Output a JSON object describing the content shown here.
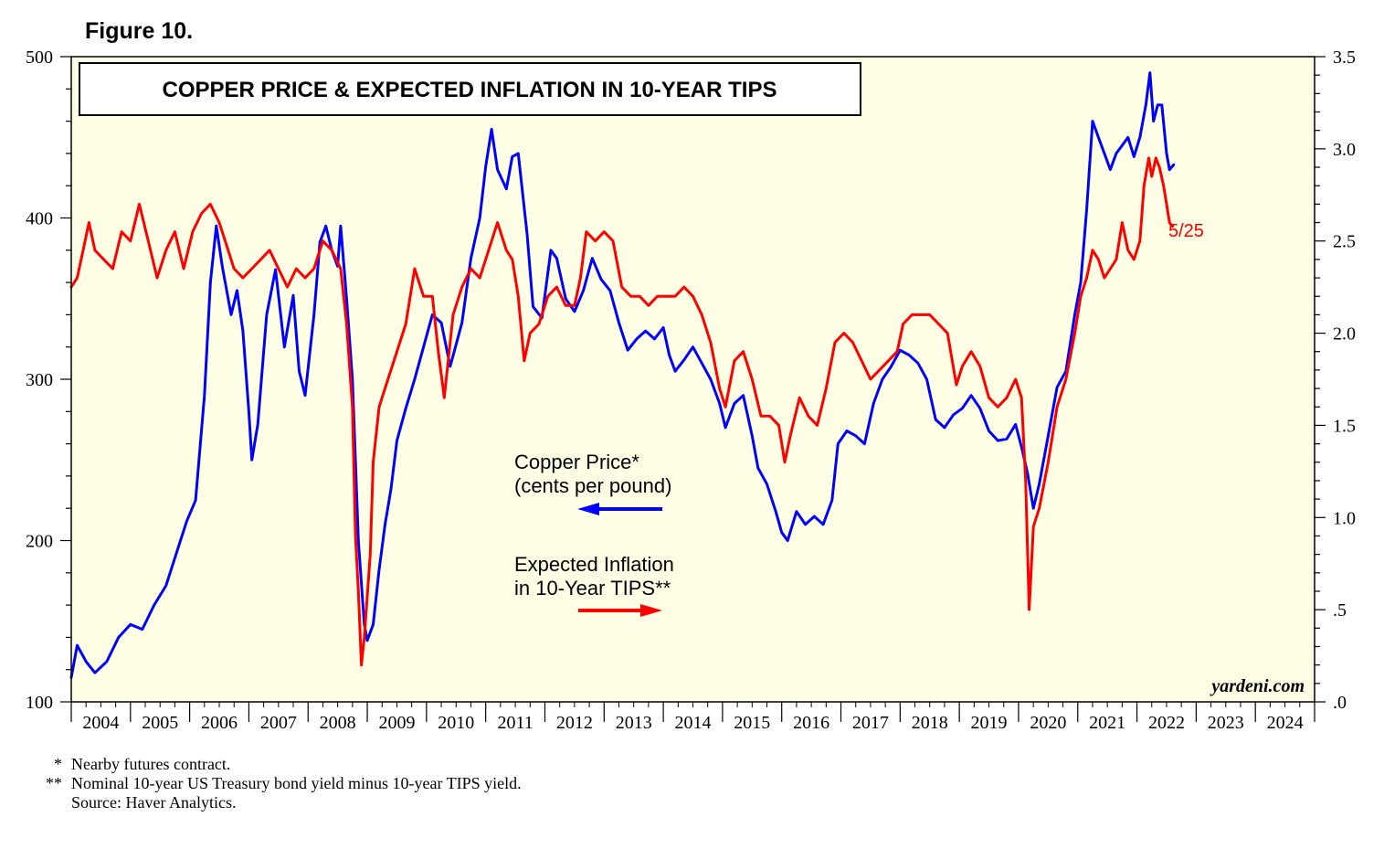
{
  "figure_label": "Figure 10.",
  "colors": {
    "plot_bg": "#FFFFE5",
    "copper": "#0000FF",
    "tips": "#FF0000",
    "axis": "#000000"
  },
  "chart_data": {
    "type": "line",
    "title": "COPPER PRICE & EXPECTED INFLATION IN 10-YEAR TIPS",
    "x_range": [
      2004.0,
      2025.0
    ],
    "x_tick_labels": [
      "2004",
      "2005",
      "2006",
      "2007",
      "2008",
      "2009",
      "2010",
      "2011",
      "2012",
      "2013",
      "2014",
      "2015",
      "2016",
      "2017",
      "2018",
      "2019",
      "2020",
      "2021",
      "2022",
      "2023",
      "2024"
    ],
    "y_left": {
      "range": [
        100,
        500
      ],
      "tick_labels": [
        "100",
        "200",
        "300",
        "400",
        "500"
      ]
    },
    "y_right": {
      "range": [
        0.0,
        3.5
      ],
      "tick_labels": [
        ".0",
        ".5",
        "1.0",
        "1.5",
        "2.0",
        "2.5",
        "3.0",
        "3.5"
      ]
    },
    "series": [
      {
        "name": "Copper Price",
        "legend": [
          "Copper Price*",
          "(cents per pound)"
        ],
        "axis": "left",
        "points": [
          [
            2004.0,
            115
          ],
          [
            2004.1,
            135
          ],
          [
            2004.25,
            125
          ],
          [
            2004.4,
            118
          ],
          [
            2004.6,
            125
          ],
          [
            2004.8,
            140
          ],
          [
            2005.0,
            148
          ],
          [
            2005.2,
            145
          ],
          [
            2005.4,
            160
          ],
          [
            2005.6,
            172
          ],
          [
            2005.8,
            195
          ],
          [
            2005.95,
            212
          ],
          [
            2006.1,
            225
          ],
          [
            2006.25,
            290
          ],
          [
            2006.35,
            360
          ],
          [
            2006.45,
            395
          ],
          [
            2006.55,
            370
          ],
          [
            2006.7,
            340
          ],
          [
            2006.8,
            355
          ],
          [
            2006.9,
            330
          ],
          [
            2007.0,
            280
          ],
          [
            2007.05,
            250
          ],
          [
            2007.15,
            272
          ],
          [
            2007.3,
            340
          ],
          [
            2007.45,
            368
          ],
          [
            2007.6,
            320
          ],
          [
            2007.75,
            352
          ],
          [
            2007.85,
            305
          ],
          [
            2007.95,
            290
          ],
          [
            2008.1,
            340
          ],
          [
            2008.2,
            385
          ],
          [
            2008.3,
            395
          ],
          [
            2008.4,
            380
          ],
          [
            2008.5,
            370
          ],
          [
            2008.55,
            395
          ],
          [
            2008.65,
            350
          ],
          [
            2008.75,
            300
          ],
          [
            2008.85,
            200
          ],
          [
            2008.95,
            148
          ],
          [
            2009.0,
            138
          ],
          [
            2009.1,
            148
          ],
          [
            2009.2,
            182
          ],
          [
            2009.3,
            210
          ],
          [
            2009.4,
            232
          ],
          [
            2009.5,
            262
          ],
          [
            2009.65,
            282
          ],
          [
            2009.8,
            300
          ],
          [
            2009.95,
            320
          ],
          [
            2010.1,
            340
          ],
          [
            2010.25,
            335
          ],
          [
            2010.4,
            308
          ],
          [
            2010.6,
            335
          ],
          [
            2010.75,
            375
          ],
          [
            2010.9,
            400
          ],
          [
            2011.0,
            432
          ],
          [
            2011.1,
            455
          ],
          [
            2011.2,
            430
          ],
          [
            2011.35,
            418
          ],
          [
            2011.45,
            438
          ],
          [
            2011.55,
            440
          ],
          [
            2011.7,
            390
          ],
          [
            2011.8,
            345
          ],
          [
            2011.95,
            338
          ],
          [
            2012.1,
            380
          ],
          [
            2012.2,
            375
          ],
          [
            2012.35,
            350
          ],
          [
            2012.5,
            342
          ],
          [
            2012.65,
            355
          ],
          [
            2012.8,
            375
          ],
          [
            2012.95,
            362
          ],
          [
            2013.1,
            355
          ],
          [
            2013.25,
            335
          ],
          [
            2013.4,
            318
          ],
          [
            2013.55,
            325
          ],
          [
            2013.7,
            330
          ],
          [
            2013.85,
            325
          ],
          [
            2014.0,
            332
          ],
          [
            2014.1,
            315
          ],
          [
            2014.2,
            305
          ],
          [
            2014.35,
            312
          ],
          [
            2014.5,
            320
          ],
          [
            2014.65,
            310
          ],
          [
            2014.8,
            300
          ],
          [
            2014.95,
            285
          ],
          [
            2015.05,
            270
          ],
          [
            2015.2,
            285
          ],
          [
            2015.35,
            290
          ],
          [
            2015.5,
            265
          ],
          [
            2015.6,
            245
          ],
          [
            2015.75,
            235
          ],
          [
            2015.9,
            218
          ],
          [
            2016.0,
            205
          ],
          [
            2016.1,
            200
          ],
          [
            2016.25,
            218
          ],
          [
            2016.4,
            210
          ],
          [
            2016.55,
            215
          ],
          [
            2016.7,
            210
          ],
          [
            2016.85,
            225
          ],
          [
            2016.95,
            260
          ],
          [
            2017.1,
            268
          ],
          [
            2017.25,
            265
          ],
          [
            2017.4,
            260
          ],
          [
            2017.55,
            285
          ],
          [
            2017.7,
            300
          ],
          [
            2017.85,
            308
          ],
          [
            2018.0,
            318
          ],
          [
            2018.15,
            315
          ],
          [
            2018.3,
            310
          ],
          [
            2018.45,
            300
          ],
          [
            2018.6,
            275
          ],
          [
            2018.75,
            270
          ],
          [
            2018.9,
            278
          ],
          [
            2019.05,
            282
          ],
          [
            2019.2,
            290
          ],
          [
            2019.35,
            282
          ],
          [
            2019.5,
            268
          ],
          [
            2019.65,
            262
          ],
          [
            2019.8,
            263
          ],
          [
            2019.95,
            272
          ],
          [
            2020.05,
            258
          ],
          [
            2020.15,
            242
          ],
          [
            2020.25,
            220
          ],
          [
            2020.35,
            235
          ],
          [
            2020.5,
            265
          ],
          [
            2020.65,
            295
          ],
          [
            2020.8,
            305
          ],
          [
            2020.95,
            340
          ],
          [
            2021.05,
            360
          ],
          [
            2021.15,
            405
          ],
          [
            2021.25,
            460
          ],
          [
            2021.35,
            450
          ],
          [
            2021.45,
            440
          ],
          [
            2021.55,
            430
          ],
          [
            2021.65,
            440
          ],
          [
            2021.75,
            445
          ],
          [
            2021.85,
            450
          ],
          [
            2021.95,
            438
          ],
          [
            2022.05,
            450
          ],
          [
            2022.15,
            470
          ],
          [
            2022.22,
            490
          ],
          [
            2022.28,
            460
          ],
          [
            2022.35,
            470
          ],
          [
            2022.42,
            470
          ],
          [
            2022.5,
            440
          ],
          [
            2022.55,
            430
          ],
          [
            2022.62,
            433
          ]
        ]
      },
      {
        "name": "Expected Inflation in 10-Year TIPS",
        "legend": [
          "Expected Inflation",
          "in 10-Year TIPS**"
        ],
        "axis": "right",
        "end_label": "5/25",
        "points": [
          [
            2004.0,
            2.25
          ],
          [
            2004.1,
            2.3
          ],
          [
            2004.2,
            2.45
          ],
          [
            2004.3,
            2.6
          ],
          [
            2004.4,
            2.45
          ],
          [
            2004.55,
            2.4
          ],
          [
            2004.7,
            2.35
          ],
          [
            2004.85,
            2.55
          ],
          [
            2005.0,
            2.5
          ],
          [
            2005.15,
            2.7
          ],
          [
            2005.3,
            2.5
          ],
          [
            2005.45,
            2.3
          ],
          [
            2005.6,
            2.45
          ],
          [
            2005.75,
            2.55
          ],
          [
            2005.9,
            2.35
          ],
          [
            2006.05,
            2.55
          ],
          [
            2006.2,
            2.65
          ],
          [
            2006.35,
            2.7
          ],
          [
            2006.5,
            2.6
          ],
          [
            2006.6,
            2.5
          ],
          [
            2006.75,
            2.35
          ],
          [
            2006.9,
            2.3
          ],
          [
            2007.05,
            2.35
          ],
          [
            2007.2,
            2.4
          ],
          [
            2007.35,
            2.45
          ],
          [
            2007.5,
            2.35
          ],
          [
            2007.65,
            2.25
          ],
          [
            2007.8,
            2.35
          ],
          [
            2007.95,
            2.3
          ],
          [
            2008.1,
            2.35
          ],
          [
            2008.25,
            2.5
          ],
          [
            2008.4,
            2.45
          ],
          [
            2008.55,
            2.35
          ],
          [
            2008.65,
            2.05
          ],
          [
            2008.75,
            1.6
          ],
          [
            2008.8,
            0.9
          ],
          [
            2008.85,
            0.6
          ],
          [
            2008.9,
            0.2
          ],
          [
            2008.95,
            0.35
          ],
          [
            2009.05,
            0.8
          ],
          [
            2009.1,
            1.3
          ],
          [
            2009.2,
            1.6
          ],
          [
            2009.35,
            1.75
          ],
          [
            2009.5,
            1.9
          ],
          [
            2009.65,
            2.05
          ],
          [
            2009.8,
            2.35
          ],
          [
            2009.95,
            2.2
          ],
          [
            2010.1,
            2.2
          ],
          [
            2010.2,
            1.9
          ],
          [
            2010.3,
            1.65
          ],
          [
            2010.45,
            2.1
          ],
          [
            2010.6,
            2.25
          ],
          [
            2010.75,
            2.35
          ],
          [
            2010.9,
            2.3
          ],
          [
            2011.05,
            2.45
          ],
          [
            2011.2,
            2.6
          ],
          [
            2011.35,
            2.45
          ],
          [
            2011.45,
            2.4
          ],
          [
            2011.55,
            2.2
          ],
          [
            2011.65,
            1.85
          ],
          [
            2011.75,
            2.0
          ],
          [
            2011.9,
            2.05
          ],
          [
            2012.05,
            2.2
          ],
          [
            2012.2,
            2.25
          ],
          [
            2012.35,
            2.15
          ],
          [
            2012.5,
            2.15
          ],
          [
            2012.6,
            2.3
          ],
          [
            2012.7,
            2.55
          ],
          [
            2012.85,
            2.5
          ],
          [
            2013.0,
            2.55
          ],
          [
            2013.15,
            2.5
          ],
          [
            2013.3,
            2.25
          ],
          [
            2013.45,
            2.2
          ],
          [
            2013.6,
            2.2
          ],
          [
            2013.75,
            2.15
          ],
          [
            2013.9,
            2.2
          ],
          [
            2014.05,
            2.2
          ],
          [
            2014.2,
            2.2
          ],
          [
            2014.35,
            2.25
          ],
          [
            2014.5,
            2.2
          ],
          [
            2014.65,
            2.1
          ],
          [
            2014.8,
            1.95
          ],
          [
            2014.95,
            1.7
          ],
          [
            2015.05,
            1.6
          ],
          [
            2015.2,
            1.85
          ],
          [
            2015.35,
            1.9
          ],
          [
            2015.5,
            1.75
          ],
          [
            2015.65,
            1.55
          ],
          [
            2015.8,
            1.55
          ],
          [
            2015.95,
            1.5
          ],
          [
            2016.05,
            1.3
          ],
          [
            2016.15,
            1.45
          ],
          [
            2016.3,
            1.65
          ],
          [
            2016.45,
            1.55
          ],
          [
            2016.6,
            1.5
          ],
          [
            2016.75,
            1.7
          ],
          [
            2016.9,
            1.95
          ],
          [
            2017.05,
            2.0
          ],
          [
            2017.2,
            1.95
          ],
          [
            2017.35,
            1.85
          ],
          [
            2017.5,
            1.75
          ],
          [
            2017.65,
            1.8
          ],
          [
            2017.8,
            1.85
          ],
          [
            2017.95,
            1.9
          ],
          [
            2018.05,
            2.05
          ],
          [
            2018.2,
            2.1
          ],
          [
            2018.35,
            2.1
          ],
          [
            2018.5,
            2.1
          ],
          [
            2018.65,
            2.05
          ],
          [
            2018.8,
            2.0
          ],
          [
            2018.95,
            1.72
          ],
          [
            2019.05,
            1.82
          ],
          [
            2019.2,
            1.9
          ],
          [
            2019.35,
            1.82
          ],
          [
            2019.5,
            1.65
          ],
          [
            2019.65,
            1.6
          ],
          [
            2019.8,
            1.65
          ],
          [
            2019.95,
            1.75
          ],
          [
            2020.05,
            1.65
          ],
          [
            2020.12,
            1.2
          ],
          [
            2020.18,
            0.5
          ],
          [
            2020.25,
            0.95
          ],
          [
            2020.35,
            1.05
          ],
          [
            2020.5,
            1.3
          ],
          [
            2020.65,
            1.6
          ],
          [
            2020.8,
            1.75
          ],
          [
            2020.95,
            2.0
          ],
          [
            2021.05,
            2.2
          ],
          [
            2021.15,
            2.3
          ],
          [
            2021.25,
            2.45
          ],
          [
            2021.35,
            2.4
          ],
          [
            2021.45,
            2.3
          ],
          [
            2021.55,
            2.35
          ],
          [
            2021.65,
            2.4
          ],
          [
            2021.75,
            2.6
          ],
          [
            2021.85,
            2.45
          ],
          [
            2021.95,
            2.4
          ],
          [
            2022.05,
            2.5
          ],
          [
            2022.12,
            2.8
          ],
          [
            2022.2,
            2.95
          ],
          [
            2022.25,
            2.85
          ],
          [
            2022.32,
            2.95
          ],
          [
            2022.38,
            2.9
          ],
          [
            2022.45,
            2.8
          ],
          [
            2022.5,
            2.7
          ],
          [
            2022.55,
            2.6
          ],
          [
            2022.6,
            2.58
          ]
        ]
      }
    ],
    "watermark": "yardeni.com",
    "footnotes": [
      {
        "mark": "*",
        "text": "Nearby futures contract."
      },
      {
        "mark": "**",
        "text": "Nominal 10-year US Treasury bond yield minus 10-year TIPS yield."
      },
      {
        "mark": "",
        "text": "Source: Haver Analytics."
      }
    ]
  }
}
